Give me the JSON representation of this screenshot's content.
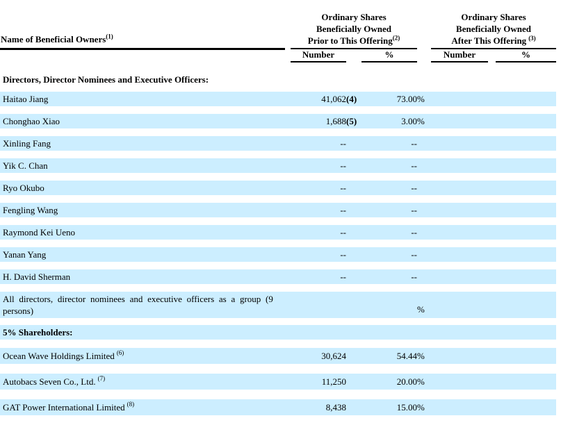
{
  "document": {
    "colors": {
      "row_highlight": "#cceeff",
      "rule": "#000000",
      "text": "#000000"
    },
    "header": {
      "name_col": {
        "label": "Name of Beneficial Owners",
        "sup": "(1)"
      },
      "group_prior": {
        "line1": "Ordinary Shares",
        "line2": "Beneficially Owned",
        "line3": "Prior to This Offering",
        "sup": "(2)"
      },
      "group_after": {
        "line1": "Ordinary Shares",
        "line2": "Beneficially Owned",
        "line3": "After This Offering",
        "sup": "(3)"
      },
      "subcols": {
        "number": "Number",
        "percent": "%"
      }
    },
    "rows": [
      {
        "type": "section",
        "label": "Directors, Director Nominees and Executive Officers:",
        "highlight": false
      },
      {
        "type": "data",
        "name": "Haitao Jiang",
        "number": "41,062",
        "number_footnote": "(4)",
        "percent": "73.00",
        "percent_sign": "%"
      },
      {
        "type": "data",
        "name": "Chonghao Xiao",
        "number": "1,688",
        "number_footnote": "(5)",
        "percent": "3.00",
        "percent_sign": "%"
      },
      {
        "type": "data",
        "name": "Xinling Fang",
        "number": "--",
        "percent": "--"
      },
      {
        "type": "data",
        "name": "Yik C. Chan",
        "number": "--",
        "percent": "--"
      },
      {
        "type": "data",
        "name": "Ryo Okubo",
        "number": "--",
        "percent": "--"
      },
      {
        "type": "data",
        "name": "Fengling Wang",
        "number": "--",
        "percent": "--"
      },
      {
        "type": "data",
        "name": "Raymond Kei Ueno",
        "number": "--",
        "percent": "--"
      },
      {
        "type": "data",
        "name": "Yanan Yang",
        "number": "--",
        "percent": "--"
      },
      {
        "type": "data",
        "name": "H. David Sherman",
        "number": "--",
        "percent": "--"
      },
      {
        "type": "group",
        "line1": "All directors, director nominees and executive officers as a group (9",
        "line2": "persons)",
        "percent_sign": "%"
      },
      {
        "type": "section",
        "label": "5% Shareholders:",
        "highlight": true
      },
      {
        "type": "data",
        "name": "Ocean Wave Holdings Limited",
        "name_sup": "(6)",
        "number": "30,624",
        "percent": "54.44",
        "percent_sign": "%"
      },
      {
        "type": "data",
        "name": "Autobacs Seven Co., Ltd.",
        "name_sup": "(7)",
        "number": "11,250",
        "percent": "20.00",
        "percent_sign": "%"
      },
      {
        "type": "data",
        "name": "GAT Power International Limited",
        "name_sup": "(8)",
        "number": "8,438",
        "percent": "15.00",
        "percent_sign": "%"
      }
    ]
  }
}
